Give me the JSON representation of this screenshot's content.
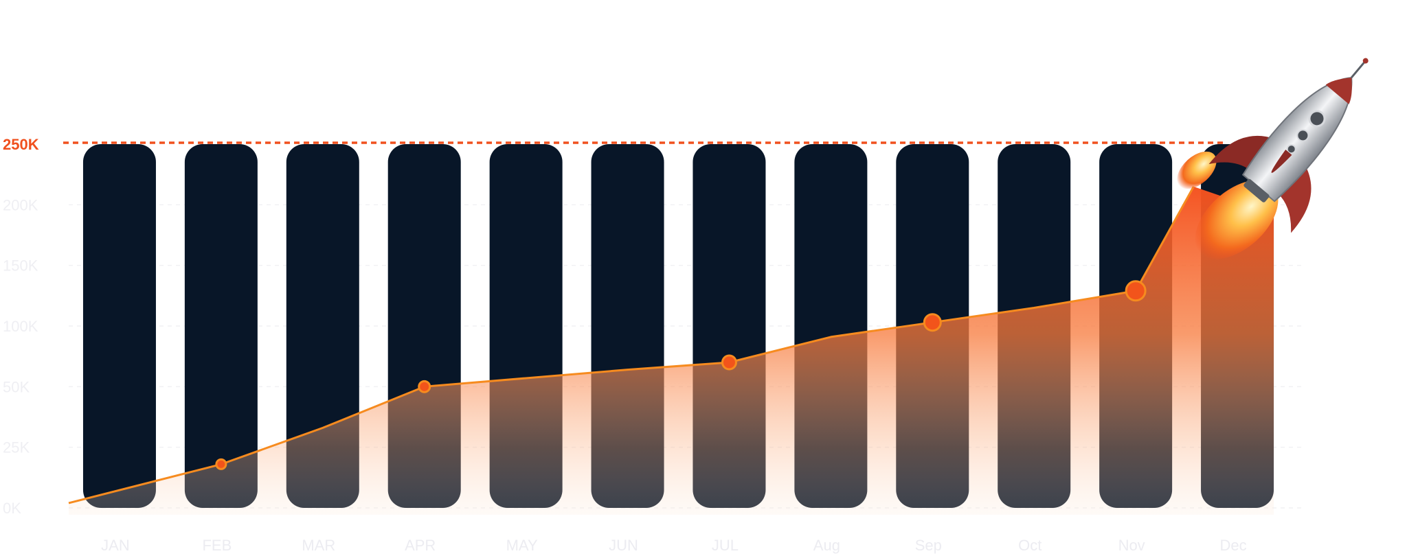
{
  "chart_data": {
    "type": "line",
    "categories": [
      "JAN",
      "FEB",
      "MAR",
      "APR",
      "MAY",
      "JUN",
      "JUL",
      "Aug",
      "Sep",
      "Oct",
      "Nov",
      "Dec"
    ],
    "y_ticks": [
      "0K",
      "25K",
      "50K",
      "100K",
      "150K",
      "200K",
      "250K"
    ],
    "target_label": "250K",
    "series": [
      {
        "values": [
          2000,
          18000,
          33000,
          50000,
          57000,
          64000,
          70000,
          91000,
          103000,
          115000,
          129000,
          215000
        ]
      }
    ],
    "marked_points": [
      "FEB",
      "APR",
      "JUL",
      "Sep",
      "Nov"
    ],
    "grid": true,
    "colors": {
      "bar": "#081628",
      "line": "#f68b1f",
      "marker": "#f2541b",
      "target_line": "#f0501e",
      "fill_top": "#f4511e",
      "fill_bottom": "#fde8d8"
    },
    "decoration": "rocket-illustration"
  }
}
